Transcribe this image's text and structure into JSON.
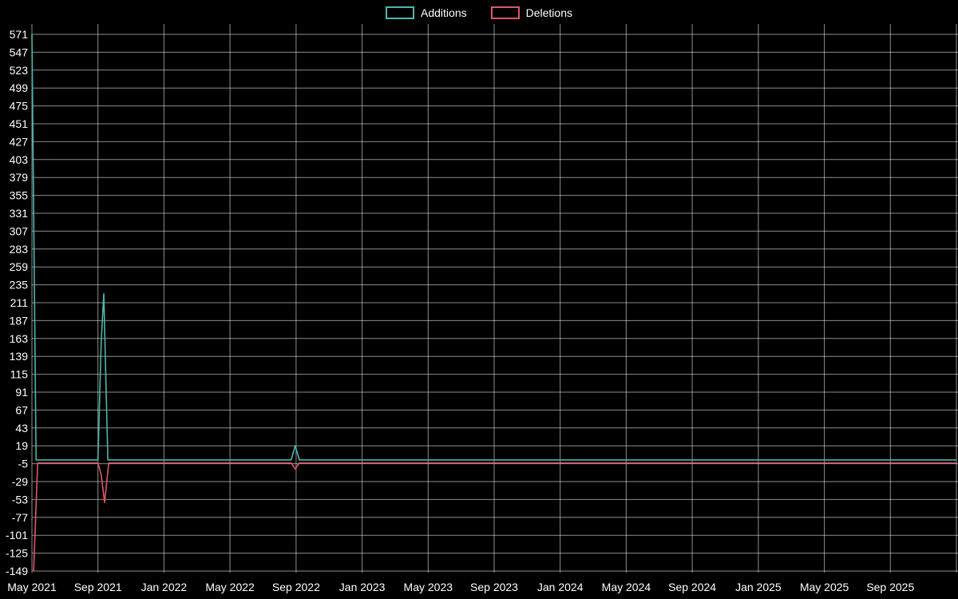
{
  "legend": {
    "position": "top-center"
  },
  "chart_data": {
    "type": "line",
    "title": "",
    "xlabel": "",
    "ylabel": "",
    "background": "#000000",
    "text_color": "#ffffff",
    "grid": {
      "show": true,
      "color": "rgba(255,255,255,0.55)"
    },
    "x_axis": {
      "unit": "months since May 2021",
      "range_months": [
        0,
        56
      ],
      "ticks": [
        {
          "m": 0,
          "label": "May 2021"
        },
        {
          "m": 4,
          "label": "Sep 2021"
        },
        {
          "m": 8,
          "label": "Jan 2022"
        },
        {
          "m": 12,
          "label": "May 2022"
        },
        {
          "m": 16,
          "label": "Sep 2022"
        },
        {
          "m": 20,
          "label": "Jan 2023"
        },
        {
          "m": 24,
          "label": "May 2023"
        },
        {
          "m": 28,
          "label": "Sep 2023"
        },
        {
          "m": 32,
          "label": "Jan 2024"
        },
        {
          "m": 36,
          "label": "May 2024"
        },
        {
          "m": 40,
          "label": "Sep 2024"
        },
        {
          "m": 44,
          "label": "Jan 2025"
        },
        {
          "m": 48,
          "label": "May 2025"
        },
        {
          "m": 52,
          "label": "Sep 2025"
        }
      ]
    },
    "y_axis": {
      "range": [
        -149,
        571
      ],
      "tick_step": 24,
      "ticks": [
        571,
        547,
        523,
        499,
        475,
        451,
        427,
        403,
        379,
        355,
        331,
        307,
        283,
        259,
        235,
        211,
        187,
        163,
        139,
        115,
        91,
        67,
        43,
        19,
        -5,
        -29,
        -53,
        -77,
        -101,
        -125,
        -149
      ]
    },
    "series": [
      {
        "name": "Additions",
        "color": "#4db6ac",
        "points": [
          [
            0,
            571
          ],
          [
            0.25,
            0
          ],
          [
            4.0,
            0
          ],
          [
            4.2,
            160
          ],
          [
            4.35,
            223
          ],
          [
            4.6,
            0
          ],
          [
            15.7,
            0
          ],
          [
            15.95,
            19
          ],
          [
            16.2,
            0
          ],
          [
            56,
            0
          ]
        ]
      },
      {
        "name": "Deletions",
        "color": "#e0566b",
        "points": [
          [
            0.1,
            -149
          ],
          [
            0.35,
            -4
          ],
          [
            4.0,
            -4
          ],
          [
            4.2,
            -20
          ],
          [
            4.4,
            -57
          ],
          [
            4.65,
            -4
          ],
          [
            15.7,
            -4
          ],
          [
            15.95,
            -12
          ],
          [
            16.2,
            -4
          ],
          [
            56,
            -4
          ]
        ]
      }
    ]
  }
}
